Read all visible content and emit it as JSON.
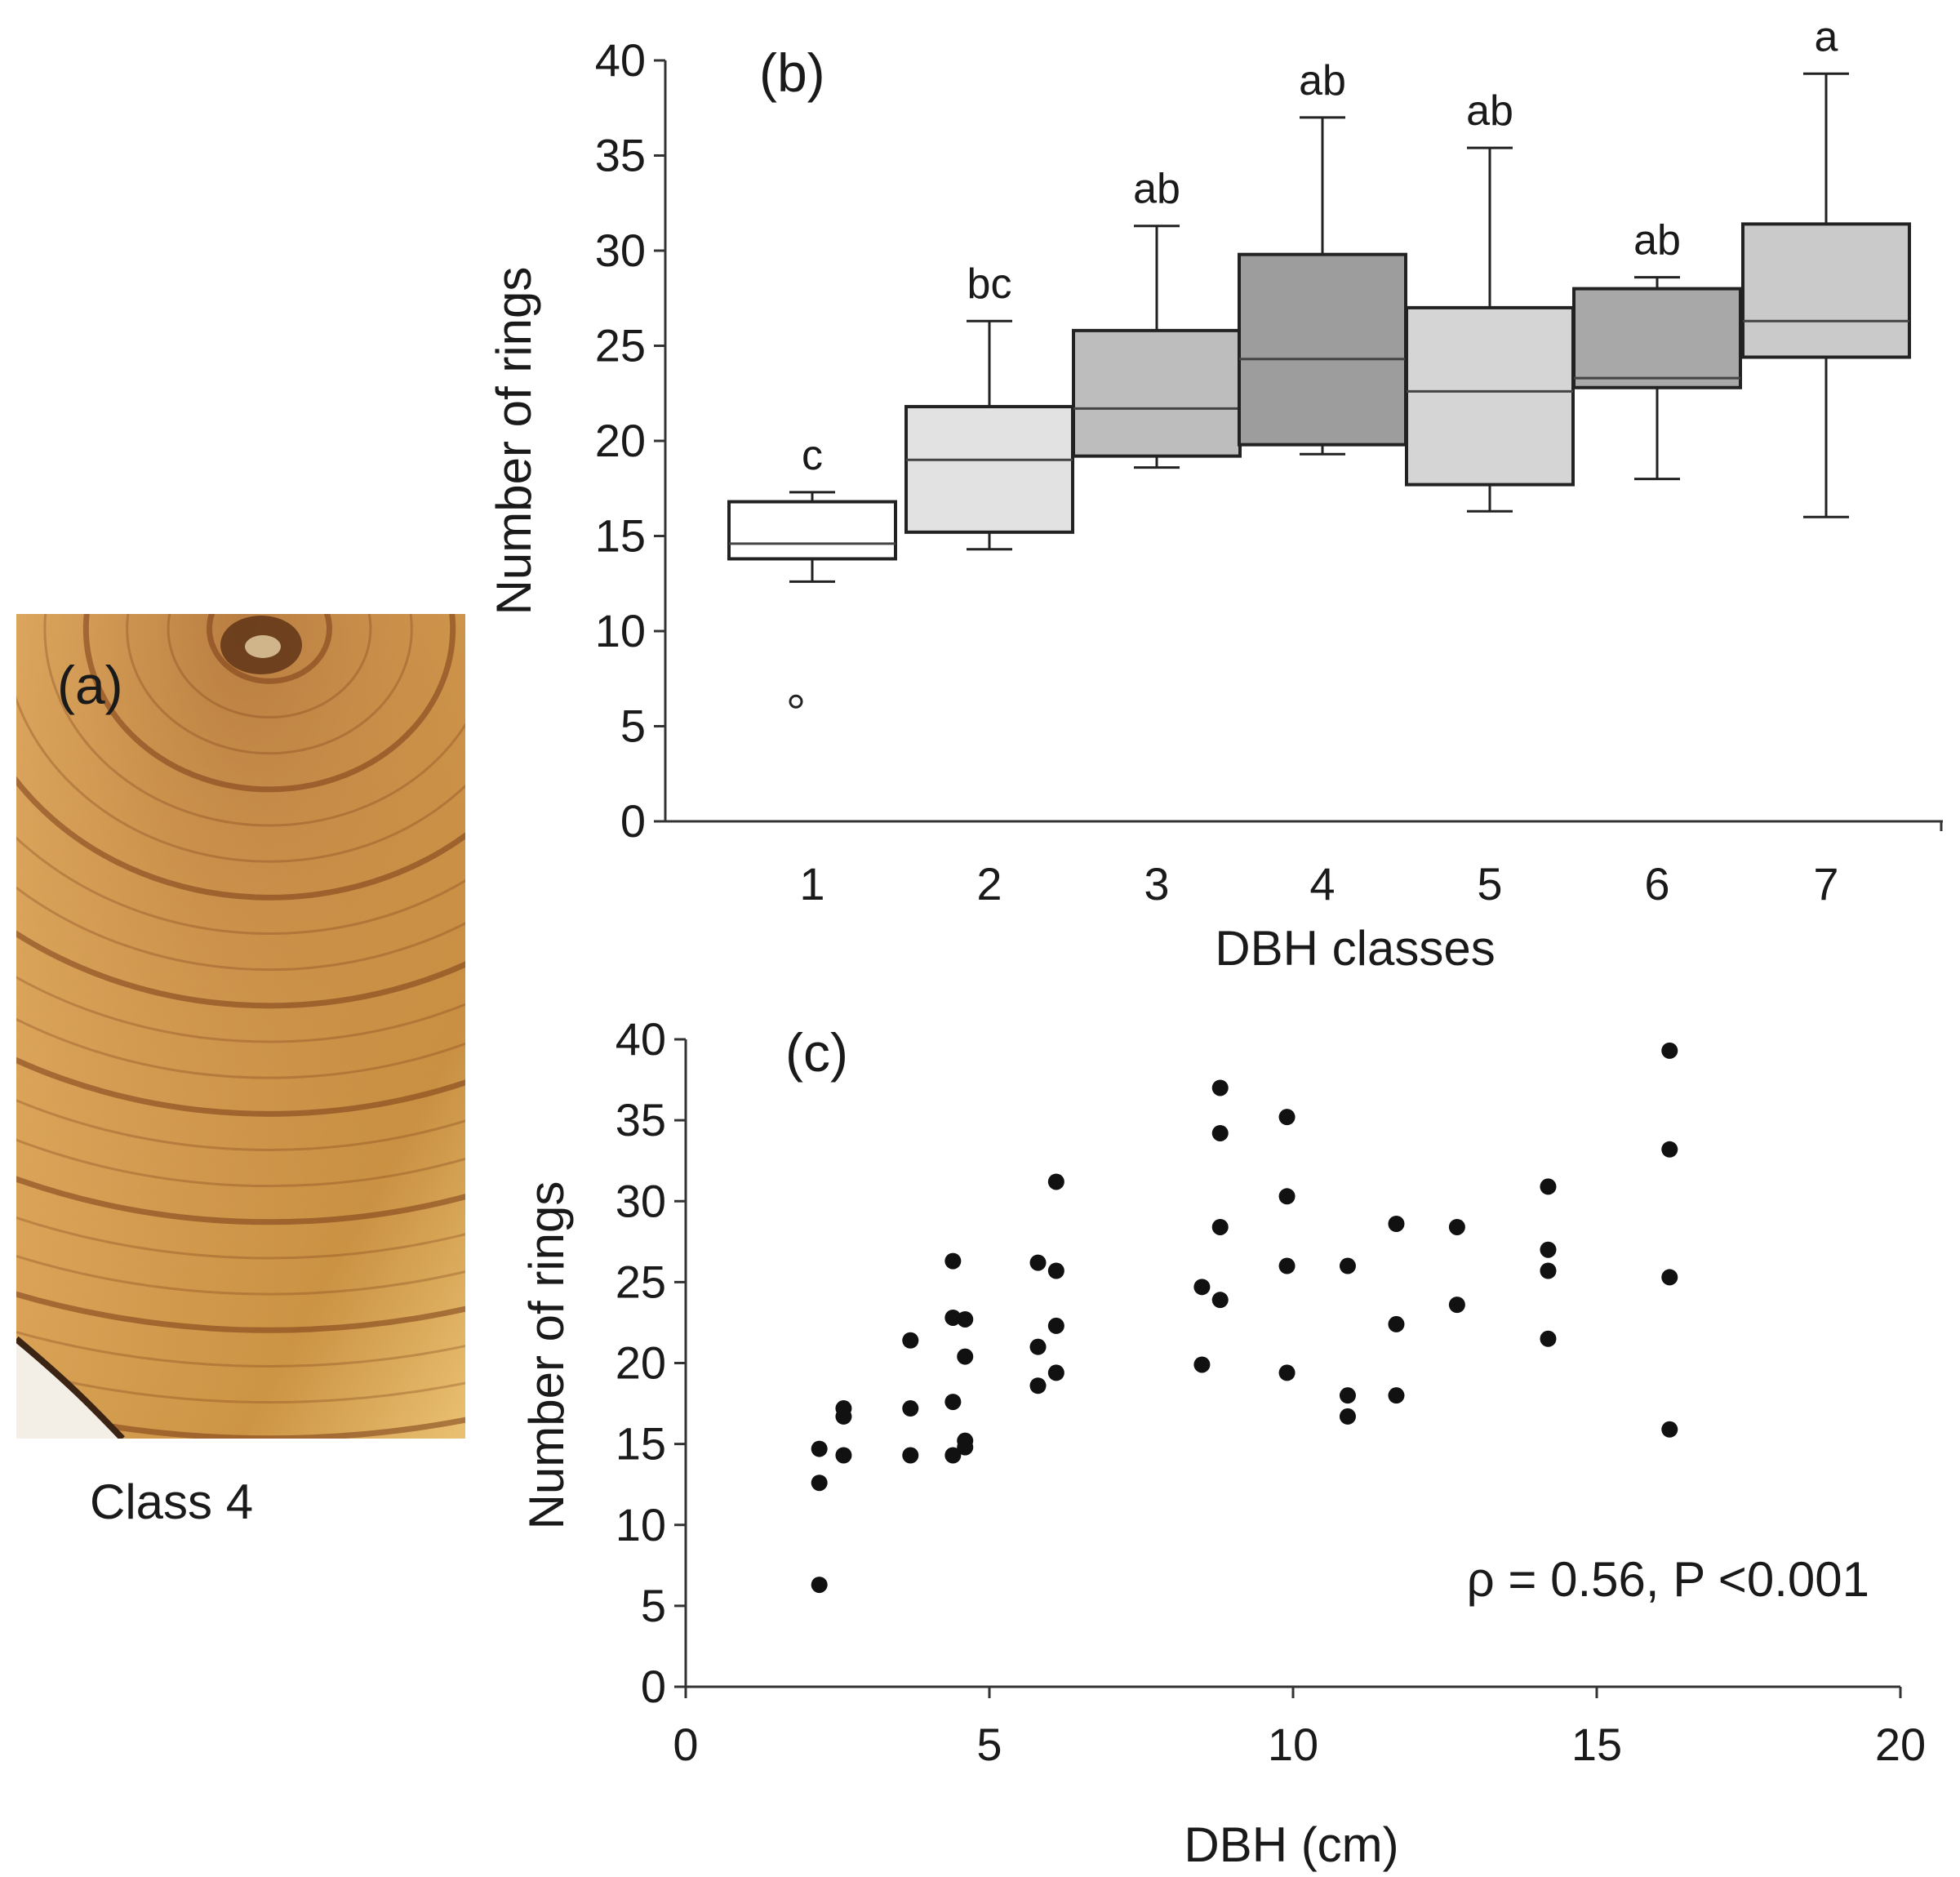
{
  "panel_a": {
    "label": "(a)",
    "caption": "Class 4",
    "colors": {
      "wood_light": "#e4b25e",
      "wood_dark": "#a0612a",
      "ring": "#7a3c18"
    }
  },
  "chart_data": [
    {
      "type": "box",
      "panel_label": "(b)",
      "title": "",
      "xlabel": "DBH classes",
      "ylabel": "Number of rings",
      "ylim": [
        0,
        40
      ],
      "yticks": [
        0,
        5,
        10,
        15,
        20,
        25,
        30,
        35,
        40
      ],
      "categories": [
        "1",
        "2",
        "3",
        "4",
        "5",
        "6",
        "7"
      ],
      "boxes": [
        {
          "category": "1",
          "min": 12.6,
          "q1": 13.8,
          "median": 14.6,
          "q3": 16.8,
          "max": 17.3,
          "outliers": [
            6.3
          ],
          "letter": "c",
          "fill": "#ffffff"
        },
        {
          "category": "2",
          "min": 14.3,
          "q1": 15.2,
          "median": 19.0,
          "q3": 21.8,
          "max": 26.3,
          "outliers": [],
          "letter": "bc",
          "fill": "#e2e2e2"
        },
        {
          "category": "3",
          "min": 18.6,
          "q1": 19.2,
          "median": 21.7,
          "q3": 25.8,
          "max": 31.3,
          "outliers": [],
          "letter": "ab",
          "fill": "#bdbdbd"
        },
        {
          "category": "4",
          "min": 19.3,
          "q1": 19.8,
          "median": 24.3,
          "q3": 29.8,
          "max": 37.0,
          "outliers": [],
          "letter": "ab",
          "fill": "#9d9d9d"
        },
        {
          "category": "5",
          "min": 16.3,
          "q1": 17.7,
          "median": 22.6,
          "q3": 27.0,
          "max": 35.4,
          "outliers": [],
          "letter": "ab",
          "fill": "#d5d5d5"
        },
        {
          "category": "6",
          "min": 18.0,
          "q1": 22.8,
          "median": 23.3,
          "q3": 28.0,
          "max": 28.6,
          "outliers": [],
          "letter": "ab",
          "fill": "#a8a8a8"
        },
        {
          "category": "7",
          "min": 16.0,
          "q1": 24.4,
          "median": 26.3,
          "q3": 31.4,
          "max": 39.3,
          "outliers": [],
          "letter": "a",
          "fill": "#cacaca"
        }
      ]
    },
    {
      "type": "scatter",
      "panel_label": "(c)",
      "title": "",
      "xlabel": "DBH (cm)",
      "ylabel": "Number of rings",
      "xlim": [
        0,
        20
      ],
      "ylim": [
        0,
        40
      ],
      "xticks": [
        0,
        5,
        10,
        15,
        20
      ],
      "yticks": [
        0,
        5,
        10,
        15,
        20,
        25,
        30,
        35,
        40
      ],
      "annotation": "ρ = 0.56, P <0.001",
      "points": [
        [
          2.2,
          14.7
        ],
        [
          2.2,
          12.6
        ],
        [
          2.2,
          6.3
        ],
        [
          2.6,
          17.2
        ],
        [
          2.6,
          16.7
        ],
        [
          2.6,
          14.3
        ],
        [
          3.7,
          21.4
        ],
        [
          3.7,
          17.2
        ],
        [
          3.7,
          14.3
        ],
        [
          4.4,
          26.3
        ],
        [
          4.4,
          22.8
        ],
        [
          4.4,
          17.6
        ],
        [
          4.4,
          14.3
        ],
        [
          4.6,
          22.7
        ],
        [
          4.6,
          20.4
        ],
        [
          4.6,
          15.2
        ],
        [
          4.6,
          14.8
        ],
        [
          5.8,
          26.2
        ],
        [
          5.8,
          21.0
        ],
        [
          5.8,
          18.6
        ],
        [
          6.1,
          31.2
        ],
        [
          6.1,
          25.7
        ],
        [
          6.1,
          22.3
        ],
        [
          6.1,
          19.4
        ],
        [
          8.5,
          24.7
        ],
        [
          8.5,
          19.9
        ],
        [
          8.8,
          37.0
        ],
        [
          8.8,
          34.2
        ],
        [
          8.8,
          28.4
        ],
        [
          8.8,
          23.9
        ],
        [
          9.9,
          35.2
        ],
        [
          9.9,
          30.3
        ],
        [
          9.9,
          26.0
        ],
        [
          9.9,
          19.4
        ],
        [
          10.9,
          26.0
        ],
        [
          10.9,
          18.0
        ],
        [
          10.9,
          16.7
        ],
        [
          11.7,
          28.6
        ],
        [
          11.7,
          22.4
        ],
        [
          11.7,
          18.0
        ],
        [
          12.7,
          28.4
        ],
        [
          12.7,
          23.6
        ],
        [
          14.2,
          30.9
        ],
        [
          14.2,
          27.0
        ],
        [
          14.2,
          25.7
        ],
        [
          14.2,
          21.5
        ],
        [
          16.2,
          39.3
        ],
        [
          16.2,
          33.2
        ],
        [
          16.2,
          25.3
        ],
        [
          16.2,
          15.9
        ]
      ]
    }
  ]
}
